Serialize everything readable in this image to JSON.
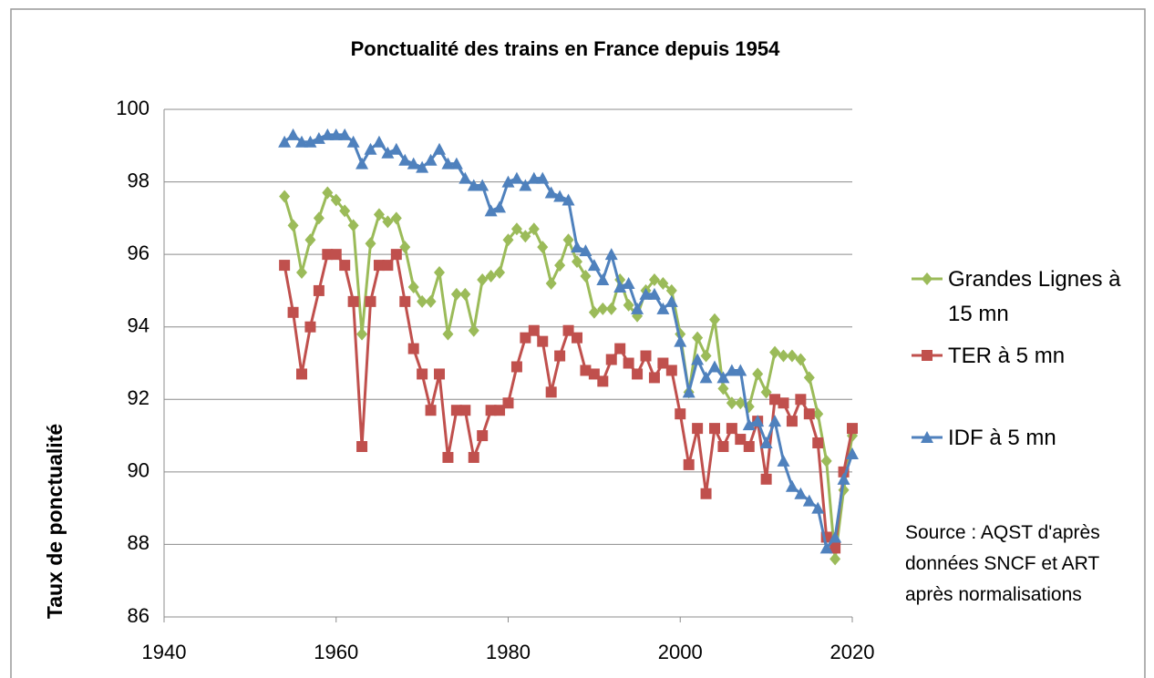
{
  "chart_data": {
    "type": "line",
    "title": "Ponctualité des trains en France depuis 1954",
    "y_label": "Taux de ponctualité",
    "annotation": "Source : AQST d'après données SNCF et ART après  normalisations",
    "x": [
      1954,
      1955,
      1956,
      1957,
      1958,
      1959,
      1960,
      1961,
      1962,
      1963,
      1964,
      1965,
      1966,
      1967,
      1968,
      1969,
      1970,
      1971,
      1972,
      1973,
      1974,
      1975,
      1976,
      1977,
      1978,
      1979,
      1980,
      1981,
      1982,
      1983,
      1984,
      1985,
      1986,
      1987,
      1988,
      1989,
      1990,
      1991,
      1992,
      1993,
      1994,
      1995,
      1996,
      1997,
      1998,
      1999,
      2000,
      2001,
      2002,
      2003,
      2004,
      2005,
      2006,
      2007,
      2008,
      2009,
      2010,
      2011,
      2012,
      2013,
      2014,
      2015,
      2016,
      2017,
      2018,
      2019,
      2020
    ],
    "series": [
      {
        "name": "Grandes Lignes à 15 mn",
        "color": "#9bbb59",
        "marker": "diamond",
        "values": [
          97.6,
          96.8,
          95.5,
          96.4,
          97.0,
          97.7,
          97.5,
          97.2,
          96.8,
          93.8,
          96.3,
          97.1,
          96.9,
          97.0,
          96.2,
          95.1,
          94.7,
          94.7,
          95.5,
          93.8,
          94.9,
          94.9,
          93.9,
          95.3,
          95.4,
          95.5,
          96.4,
          96.7,
          96.5,
          96.7,
          96.2,
          95.2,
          95.7,
          96.4,
          95.8,
          95.4,
          94.4,
          94.5,
          94.5,
          95.3,
          94.6,
          94.3,
          95.0,
          95.3,
          95.2,
          95.0,
          93.8,
          92.2,
          93.7,
          93.2,
          94.2,
          92.3,
          91.9,
          91.9,
          91.8,
          92.7,
          92.2,
          93.3,
          93.2,
          93.2,
          93.1,
          92.6,
          91.6,
          90.3,
          87.6,
          89.5,
          91.0
        ]
      },
      {
        "name": "TER à 5 mn",
        "color": "#c0504d",
        "marker": "square",
        "values": [
          95.7,
          94.4,
          92.7,
          94.0,
          95.0,
          96.0,
          96.0,
          95.7,
          94.7,
          90.7,
          94.7,
          95.7,
          95.7,
          96.0,
          94.7,
          93.4,
          92.7,
          91.7,
          92.7,
          90.4,
          91.7,
          91.7,
          90.4,
          91.0,
          91.7,
          91.7,
          91.9,
          92.9,
          93.7,
          93.9,
          93.6,
          92.2,
          93.2,
          93.9,
          93.7,
          92.8,
          92.7,
          92.5,
          93.1,
          93.4,
          93.0,
          92.7,
          93.2,
          92.6,
          93.0,
          92.8,
          91.6,
          90.2,
          91.2,
          89.4,
          91.2,
          90.7,
          91.2,
          90.9,
          90.7,
          91.4,
          89.8,
          92.0,
          91.9,
          91.4,
          92.0,
          91.6,
          90.8,
          88.2,
          87.9,
          90.0,
          91.2
        ]
      },
      {
        "name": "IDF à 5 mn",
        "color": "#4f81bd",
        "marker": "triangle",
        "values": [
          99.1,
          99.3,
          99.1,
          99.1,
          99.2,
          99.3,
          99.3,
          99.3,
          99.1,
          98.5,
          98.9,
          99.1,
          98.8,
          98.9,
          98.6,
          98.5,
          98.4,
          98.6,
          98.9,
          98.5,
          98.5,
          98.1,
          97.9,
          97.9,
          97.2,
          97.3,
          98.0,
          98.1,
          97.9,
          98.1,
          98.1,
          97.7,
          97.6,
          97.5,
          96.2,
          96.1,
          95.7,
          95.3,
          96.0,
          95.1,
          95.2,
          94.5,
          94.9,
          94.9,
          94.5,
          94.7,
          93.6,
          92.2,
          93.1,
          92.6,
          92.9,
          92.6,
          92.8,
          92.8,
          91.3,
          91.4,
          90.8,
          91.4,
          90.3,
          89.6,
          89.4,
          89.2,
          89.0,
          87.9,
          88.2,
          89.8,
          90.5
        ]
      }
    ],
    "xlim": [
      1940,
      2020
    ],
    "xticks": [
      1940,
      1960,
      1980,
      2000,
      2020
    ],
    "ylim": [
      86,
      100
    ],
    "yticks": [
      86,
      88,
      90,
      92,
      94,
      96,
      98,
      100
    ],
    "grid": true
  }
}
